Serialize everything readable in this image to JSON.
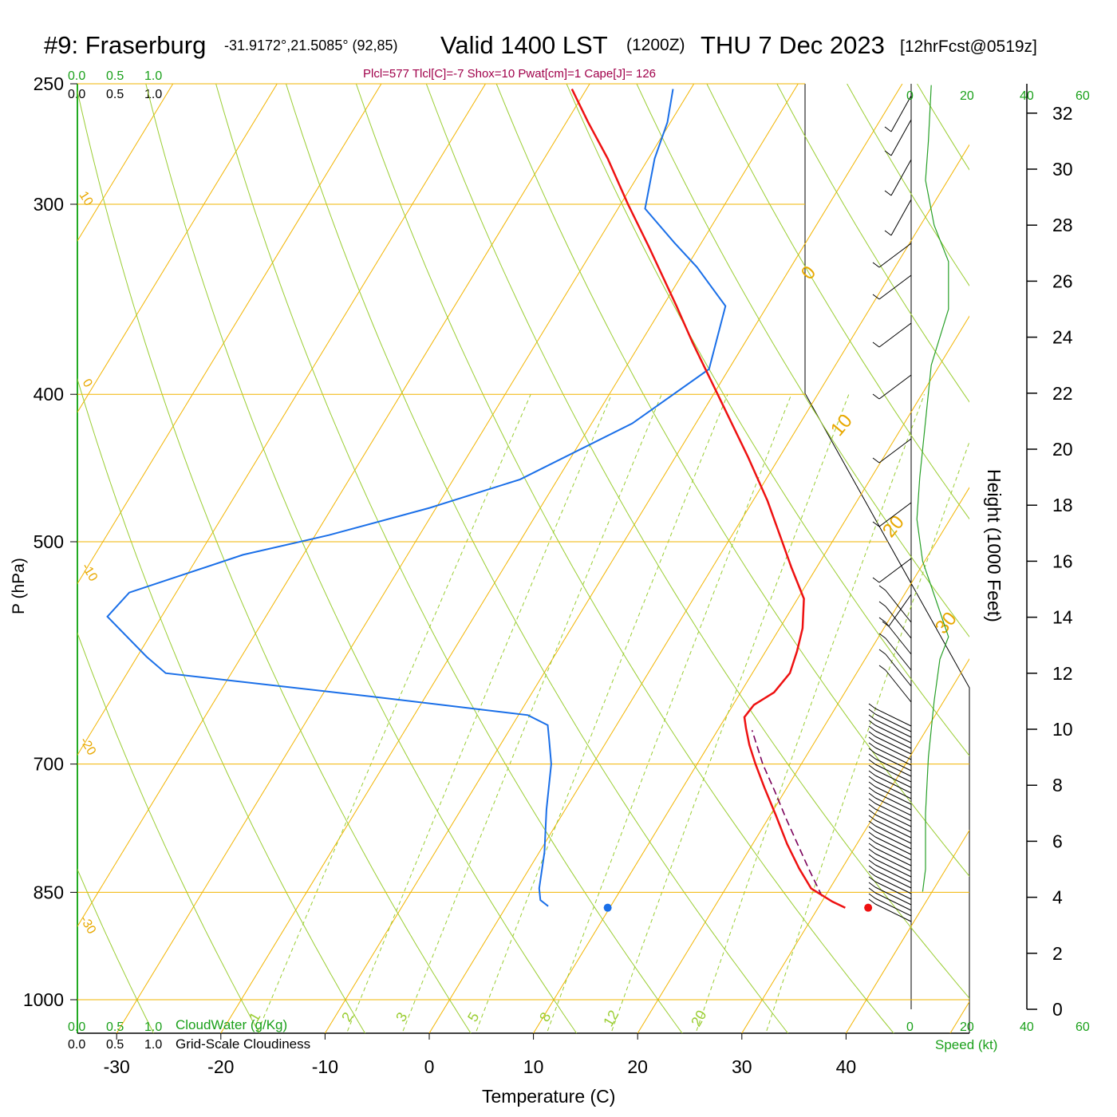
{
  "header": {
    "station": "#9: Fraserburg",
    "coords": "-31.9172°,21.5085° (92,85)",
    "valid_prefix": "Valid 1400 LST",
    "valid_z": "(1200Z)",
    "valid_date": "THU 7 Dec 2023",
    "forecast": "[12hrFcst@0519z]",
    "indices": "Plcl=577 Tlcl[C]=-7 Shox=10 Pwat[cm]=1 Cape[J]= 126"
  },
  "colors": {
    "temperature": "#ee1111",
    "dewpoint": "#1a6fe8",
    "isobar": "#f2b400",
    "dry_adiabat": "#9acd32",
    "mixing_ratio": "#9acd32",
    "parcel": "#7a005a",
    "wind_speed": "#28a028"
  },
  "chart_data": {
    "type": "line",
    "chart_subtype": "skew-T log-p sounding",
    "xlabel": "Temperature (C)",
    "ylabel": "P (hPa)",
    "right_label": "Height (1000 Feet)",
    "x_ticks": [
      -30,
      -20,
      -10,
      0,
      10,
      20,
      30,
      40
    ],
    "xlim": [
      -34,
      46
    ],
    "pressure_ticks": [
      250,
      300,
      400,
      500,
      700,
      850,
      1000
    ],
    "plim": [
      250,
      1070
    ],
    "log_pressure": true,
    "height_ticks": [
      0,
      2,
      4,
      6,
      8,
      10,
      12,
      14,
      16,
      18,
      20,
      22,
      24,
      26,
      28,
      30,
      32
    ],
    "isotherm_labels_left": [
      "10",
      "0",
      "-10",
      "-20",
      "-30"
    ],
    "isotherm_labels_right": [
      "0",
      "10",
      "20",
      "30"
    ],
    "mixing_ratio_labels": [
      "1",
      "2",
      "3",
      "5",
      "8",
      "12",
      "20"
    ],
    "wind_scale_ticks": [
      "0",
      "20",
      "40",
      "60"
    ],
    "wind_scale_label": "Speed (kt)",
    "cloud_scale_ticks": [
      "0.0",
      "0.5",
      "1.0"
    ],
    "cloud_water_label": "CloudWater (g/Kg)",
    "cloudiness_label": "Grid-Scale Cloudiness",
    "series": [
      {
        "name": "temperature",
        "points": [
          {
            "p": 870,
            "t": 32.6
          },
          {
            "p": 862,
            "t": 31.0
          },
          {
            "p": 845,
            "t": 28.2
          },
          {
            "p": 820,
            "t": 25.9
          },
          {
            "p": 790,
            "t": 23.3
          },
          {
            "p": 757,
            "t": 20.6
          },
          {
            "p": 725,
            "t": 17.8
          },
          {
            "p": 700,
            "t": 15.6
          },
          {
            "p": 680,
            "t": 13.9
          },
          {
            "p": 663,
            "t": 12.6
          },
          {
            "p": 652,
            "t": 11.8
          },
          {
            "p": 640,
            "t": 12.0
          },
          {
            "p": 628,
            "t": 13.2
          },
          {
            "p": 610,
            "t": 13.6
          },
          {
            "p": 590,
            "t": 13.0
          },
          {
            "p": 570,
            "t": 12.2
          },
          {
            "p": 545,
            "t": 10.6
          },
          {
            "p": 520,
            "t": 7.6
          },
          {
            "p": 500,
            "t": 5.2
          },
          {
            "p": 470,
            "t": 1.4
          },
          {
            "p": 440,
            "t": -3.0
          },
          {
            "p": 400,
            "t": -9.6
          },
          {
            "p": 370,
            "t": -15.0
          },
          {
            "p": 350,
            "t": -18.7
          },
          {
            "p": 320,
            "t": -24.8
          },
          {
            "p": 300,
            "t": -29.3
          },
          {
            "p": 280,
            "t": -33.9
          },
          {
            "p": 265,
            "t": -37.9
          },
          {
            "p": 252,
            "t": -41.4
          }
        ]
      },
      {
        "name": "dewpoint",
        "points": [
          {
            "p": 868,
            "t": 4.0
          },
          {
            "p": 860,
            "t": 2.9
          },
          {
            "p": 845,
            "t": 2.1
          },
          {
            "p": 800,
            "t": 0.5
          },
          {
            "p": 750,
            "t": -1.8
          },
          {
            "p": 700,
            "t": -4.0
          },
          {
            "p": 675,
            "t": -5.6
          },
          {
            "p": 660,
            "t": -6.6
          },
          {
            "p": 650,
            "t": -9.1
          },
          {
            "p": 632,
            "t": -25.2
          },
          {
            "p": 610,
            "t": -46.3
          },
          {
            "p": 595,
            "t": -49.1
          },
          {
            "p": 560,
            "t": -55.2
          },
          {
            "p": 540,
            "t": -54.5
          },
          {
            "p": 510,
            "t": -45.8
          },
          {
            "p": 495,
            "t": -38.7
          },
          {
            "p": 475,
            "t": -30.6
          },
          {
            "p": 455,
            "t": -23.6
          },
          {
            "p": 418,
            "t": -16.1
          },
          {
            "p": 385,
            "t": -11.9
          },
          {
            "p": 350,
            "t": -14.0
          },
          {
            "p": 330,
            "t": -19.0
          },
          {
            "p": 318,
            "t": -22.6
          },
          {
            "p": 302,
            "t": -27.4
          },
          {
            "p": 280,
            "t": -29.4
          },
          {
            "p": 265,
            "t": -30.3
          },
          {
            "p": 252,
            "t": -31.7
          }
        ]
      },
      {
        "name": "parcel",
        "points": [
          {
            "p": 855,
            "t": 29.7
          },
          {
            "p": 820,
            "t": 26.8
          },
          {
            "p": 790,
            "t": 24.3
          },
          {
            "p": 760,
            "t": 21.7
          },
          {
            "p": 730,
            "t": 19.1
          },
          {
            "p": 700,
            "t": 16.3
          },
          {
            "p": 680,
            "t": 14.6
          },
          {
            "p": 665,
            "t": 13.3
          }
        ]
      },
      {
        "name": "wind_speed",
        "points": [
          {
            "z": 4.2,
            "v": 4
          },
          {
            "z": 5,
            "v": 5
          },
          {
            "z": 7,
            "v": 5
          },
          {
            "z": 9,
            "v": 6
          },
          {
            "z": 11,
            "v": 8
          },
          {
            "z": 12.5,
            "v": 10
          },
          {
            "z": 13.3,
            "v": 13
          },
          {
            "z": 14.5,
            "v": 9
          },
          {
            "z": 16,
            "v": 4
          },
          {
            "z": 17.5,
            "v": 2
          },
          {
            "z": 19,
            "v": 3
          },
          {
            "z": 21,
            "v": 5
          },
          {
            "z": 23,
            "v": 7
          },
          {
            "z": 25,
            "v": 13
          },
          {
            "z": 26.7,
            "v": 13
          },
          {
            "z": 28,
            "v": 8
          },
          {
            "z": 29.6,
            "v": 5
          },
          {
            "z": 31,
            "v": 6
          },
          {
            "z": 33,
            "v": 7
          }
        ]
      }
    ],
    "surface_temperature": 34.8,
    "surface_dewpoint": 9.8,
    "surface_pressure": 870
  }
}
